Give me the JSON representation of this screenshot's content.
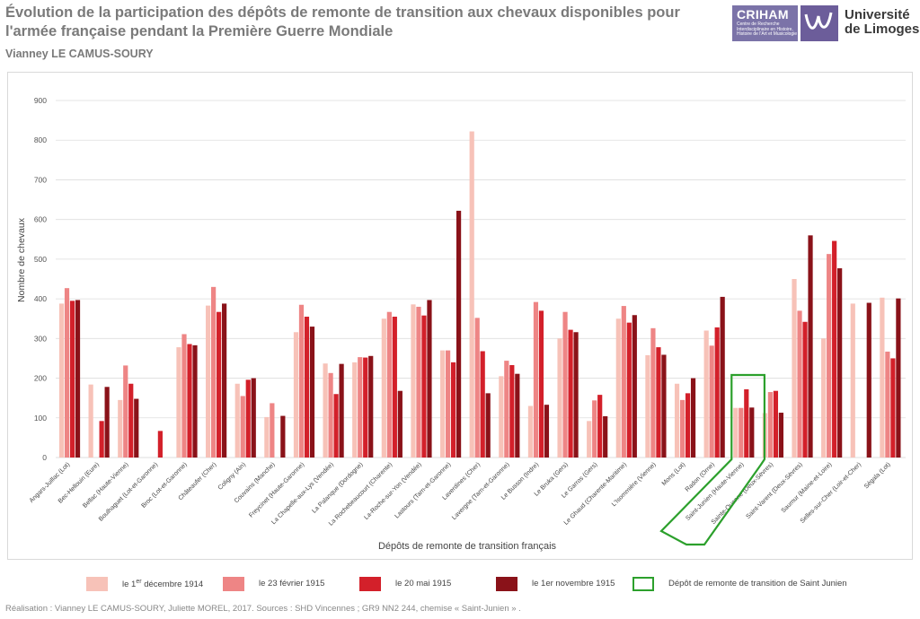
{
  "header": {
    "title": "Évolution de la participation des dépôts de remonte de transition aux chevaux disponibles pour l'armée française pendant la Première Guerre Mondiale",
    "author": "Vianney LE CAMUS-SOURY"
  },
  "logos": {
    "criham": "CRIHAM",
    "criham_subtitle": "Centre de Recherche Interdisciplinaire en Histoire, Histoire de l'Art et Musicologie",
    "university_line1": "Université",
    "university_line2": "de Limoges"
  },
  "colors": {
    "series1": "#f7c2b8",
    "series2": "#ee8585",
    "series3": "#d3202a",
    "series4": "#8a1219",
    "highlight": "#2ca02c",
    "grid": "#dddddd"
  },
  "chart_data": {
    "type": "bar",
    "title": "",
    "xlabel": "Dépôts de remonte de transition français",
    "ylabel": "Nombre de chevaux",
    "ylim": [
      0,
      900
    ],
    "yticks": [
      0,
      100,
      200,
      300,
      400,
      500,
      600,
      700,
      800,
      900
    ],
    "categories": [
      "Angars-Juillac (Lot)",
      "Bec-Hellouin (Eure)",
      "Bellac (Haute-Vienne)",
      "Boulhaguet (Lot-et-Garonne)",
      "Broc (Lot-et-Garonne)",
      "Châteaufer (Cher)",
      "Coligny (Ain)",
      "Couvains (Manche)",
      "Freycinet (Haute-Garonne)",
      "La Chapelle-aux-Lys (Vendée)",
      "La Palanque (Dordogne)",
      "La Rochebeaucourt (Charente)",
      "La-Roche-sur-Yon (Vendée)",
      "Lastours (Tarn-et-Garonne)",
      "Laverdines (Cher)",
      "Lavergne (Tarn-et-Garonne)",
      "Le Busson (Indre)",
      "Le Bruka (Gers)",
      "Le Garros (Gers)",
      "Le Ghaud (Charente-Maritime)",
      "L'Isommière (Vienne)",
      "Mons (Lot)",
      "Radon (Orne)",
      "Saint-Junien (Haute-Vienne)",
      "Sainte-Ouenne (Deux-Sèvres)",
      "Saint-Varent (Deux-Sèvres)",
      "Saumur (Maine-et-Loire)",
      "Selles-sur-Cher (Loir-et-Cher)",
      "Ségala (Lot)"
    ],
    "series": [
      {
        "name": "le 1er décembre 1914",
        "values": [
          388,
          184,
          145,
          0,
          278,
          383,
          186,
          102,
          316,
          237,
          240,
          350,
          386,
          270,
          822,
          205,
          130,
          300,
          92,
          350,
          258,
          186,
          320,
          125,
          112,
          450,
          300,
          388,
          403
        ]
      },
      {
        "name": "le 23 février 1915",
        "values": [
          427,
          0,
          232,
          0,
          311,
          430,
          155,
          137,
          385,
          213,
          253,
          367,
          380,
          270,
          352,
          244,
          392,
          367,
          144,
          382,
          326,
          145,
          282,
          125,
          165,
          370,
          513,
          0,
          267
        ]
      },
      {
        "name": "le 20 mai 1915",
        "values": [
          395,
          92,
          186,
          67,
          286,
          367,
          196,
          0,
          355,
          160,
          252,
          355,
          358,
          240,
          268,
          233,
          370,
          322,
          158,
          340,
          278,
          162,
          328,
          172,
          168,
          342,
          546,
          0,
          250
        ]
      },
      {
        "name": "le 1er novembre 1915",
        "values": [
          397,
          178,
          148,
          0,
          283,
          388,
          200,
          105,
          330,
          236,
          256,
          168,
          397,
          622,
          162,
          211,
          133,
          316,
          104,
          359,
          259,
          200,
          405,
          126,
          113,
          560,
          477,
          390,
          401
        ]
      }
    ],
    "highlight_category": "Saint-Junien (Haute-Vienne)"
  },
  "legend": {
    "item1_prefix": "le 1",
    "item1_sup": "er",
    "item1_suffix": " décembre 1914",
    "item2": "le 23 février 1915",
    "item3": "le 20 mai 1915",
    "item4": "le 1er novembre 1915",
    "item5": "Dépôt de remonte de transition de Saint Junien"
  },
  "footer": {
    "credits": "Réalisation : Vianney LE CAMUS-SOURY, Juliette MOREL, 2017.  Sources :  SHD Vincennes ; GR9 NN2 244, chemise « Saint-Junien » ."
  }
}
